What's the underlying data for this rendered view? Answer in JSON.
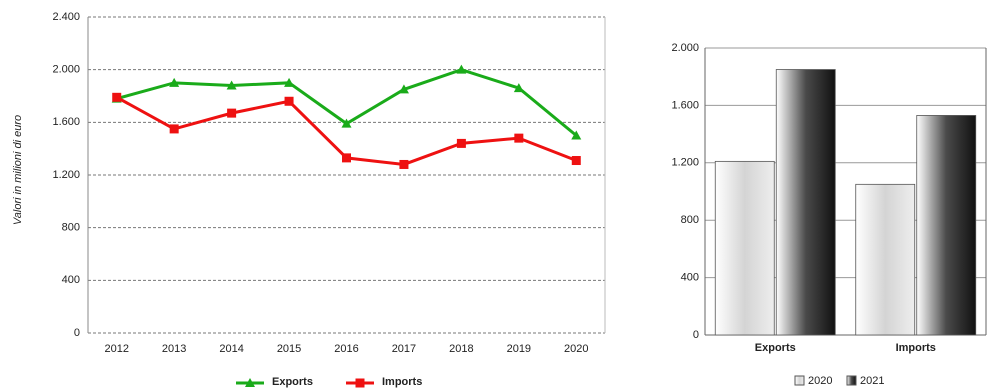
{
  "chart_data": [
    {
      "type": "line",
      "y_label": "Valori in milioni di euro",
      "categories": [
        "2012",
        "2013",
        "2014",
        "2015",
        "2016",
        "2017",
        "2018",
        "2019",
        "2020"
      ],
      "series": [
        {
          "name": "Exports",
          "color": "#1aab1a",
          "marker": "triangle",
          "values": [
            1780,
            1900,
            1880,
            1900,
            1590,
            1850,
            2000,
            1860,
            1500
          ]
        },
        {
          "name": "Imports",
          "color": "#ee1111",
          "marker": "square",
          "values": [
            1790,
            1550,
            1670,
            1760,
            1330,
            1280,
            1440,
            1480,
            1310
          ]
        }
      ],
      "ylim": [
        0,
        2400
      ],
      "yticks": [
        0,
        400,
        800,
        {
          "value": 1200,
          "label": "1.200"
        },
        {
          "value": 1600,
          "label": "1.600"
        },
        {
          "value": 2000,
          "label": "2.000"
        },
        {
          "value": 2400,
          "label": "2.400"
        }
      ],
      "grid": true
    },
    {
      "type": "bar",
      "categories": [
        "Exports",
        "Imports"
      ],
      "series": [
        {
          "name": "2020",
          "color": "#d4d4d4",
          "values": [
            1210,
            1050
          ]
        },
        {
          "name": "2021",
          "color": "#4a4a4a",
          "values": [
            1850,
            1530
          ]
        }
      ],
      "ylim": [
        0,
        2000
      ],
      "yticks": [
        0,
        400,
        800,
        {
          "value": 1200,
          "label": "1.200"
        },
        {
          "value": 1600,
          "label": "1.600"
        },
        {
          "value": 2000,
          "label": "2.000"
        }
      ],
      "grid": true
    }
  ]
}
